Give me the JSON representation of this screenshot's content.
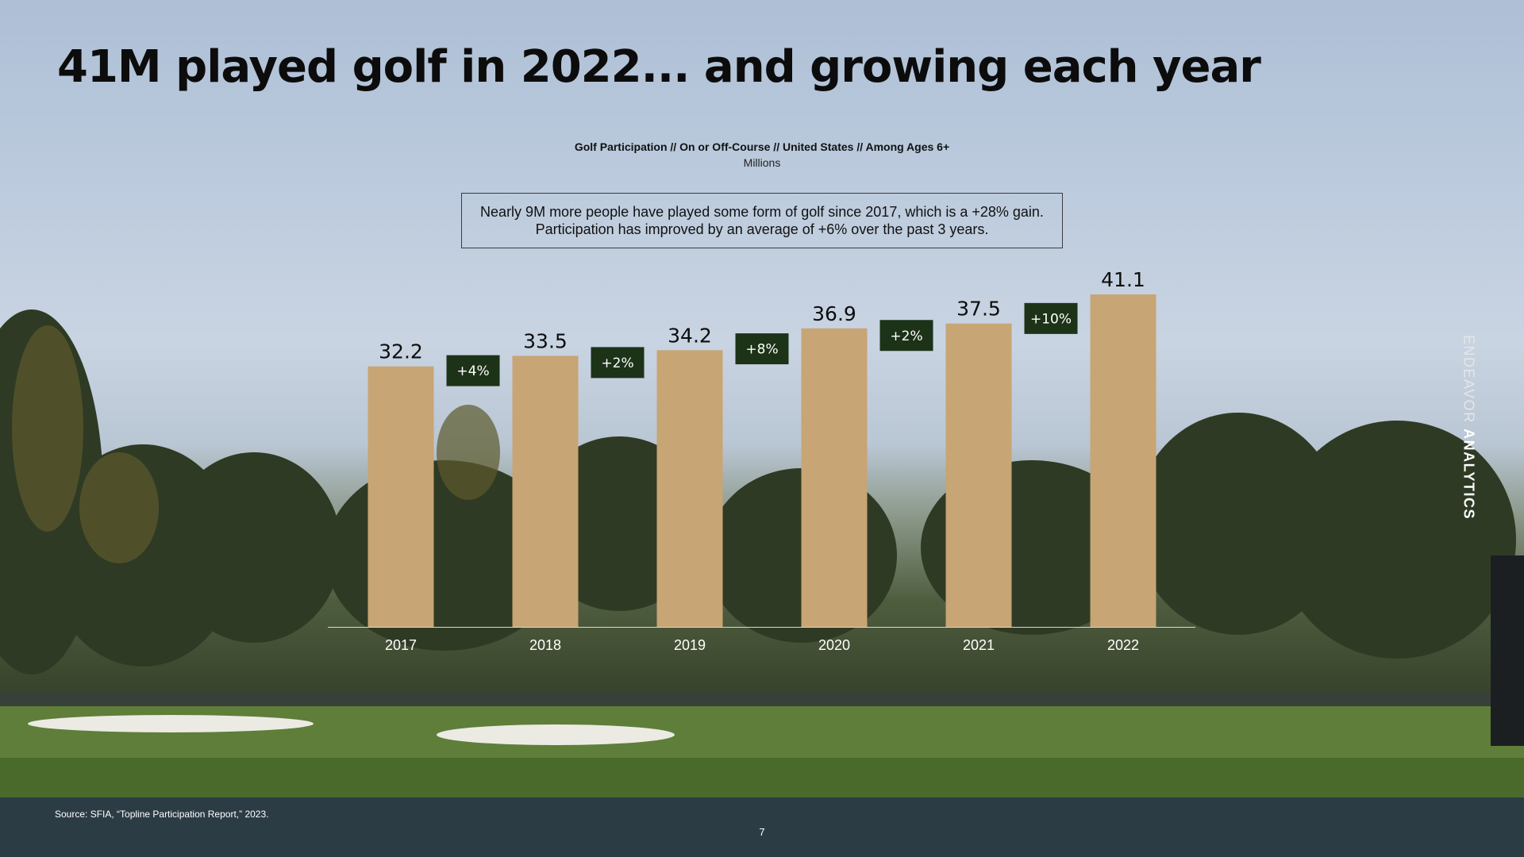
{
  "slide": {
    "title": "41M played golf in 2022... and growing each year",
    "callout_line1": "Nearly 9M more people have played some form of golf since 2017, which is a +28% gain.",
    "callout_line2": "Participation has improved by an average of +6% over the past 3 years.",
    "brand_light": "ENDEAVOR",
    "brand_bold": "ANALYTICS",
    "source": "Source: SFIA, “Topline Participation Report,” 2023.",
    "page_number": "7"
  },
  "chart_data": {
    "type": "bar",
    "title": "Golf Participation // On or Off-Course // United States // Among Ages 6+",
    "subtitle": "Millions",
    "categories": [
      "2017",
      "2018",
      "2019",
      "2020",
      "2021",
      "2022"
    ],
    "values": [
      32.2,
      33.5,
      34.2,
      36.9,
      37.5,
      41.1
    ],
    "value_labels": [
      "32.2",
      "33.5",
      "34.2",
      "36.9",
      "37.5",
      "41.1"
    ],
    "growth_labels": [
      "+4%",
      "+2%",
      "+8%",
      "+2%",
      "+10%"
    ],
    "ylim": [
      0,
      41.1
    ],
    "grid": false,
    "legend": "none",
    "colors": {
      "bar": "#c7a574",
      "growth_badge": "#1d3318",
      "growth_text": "#ffffff",
      "value_text": "#0c0c0c",
      "axis_label": "#ffffff"
    }
  }
}
